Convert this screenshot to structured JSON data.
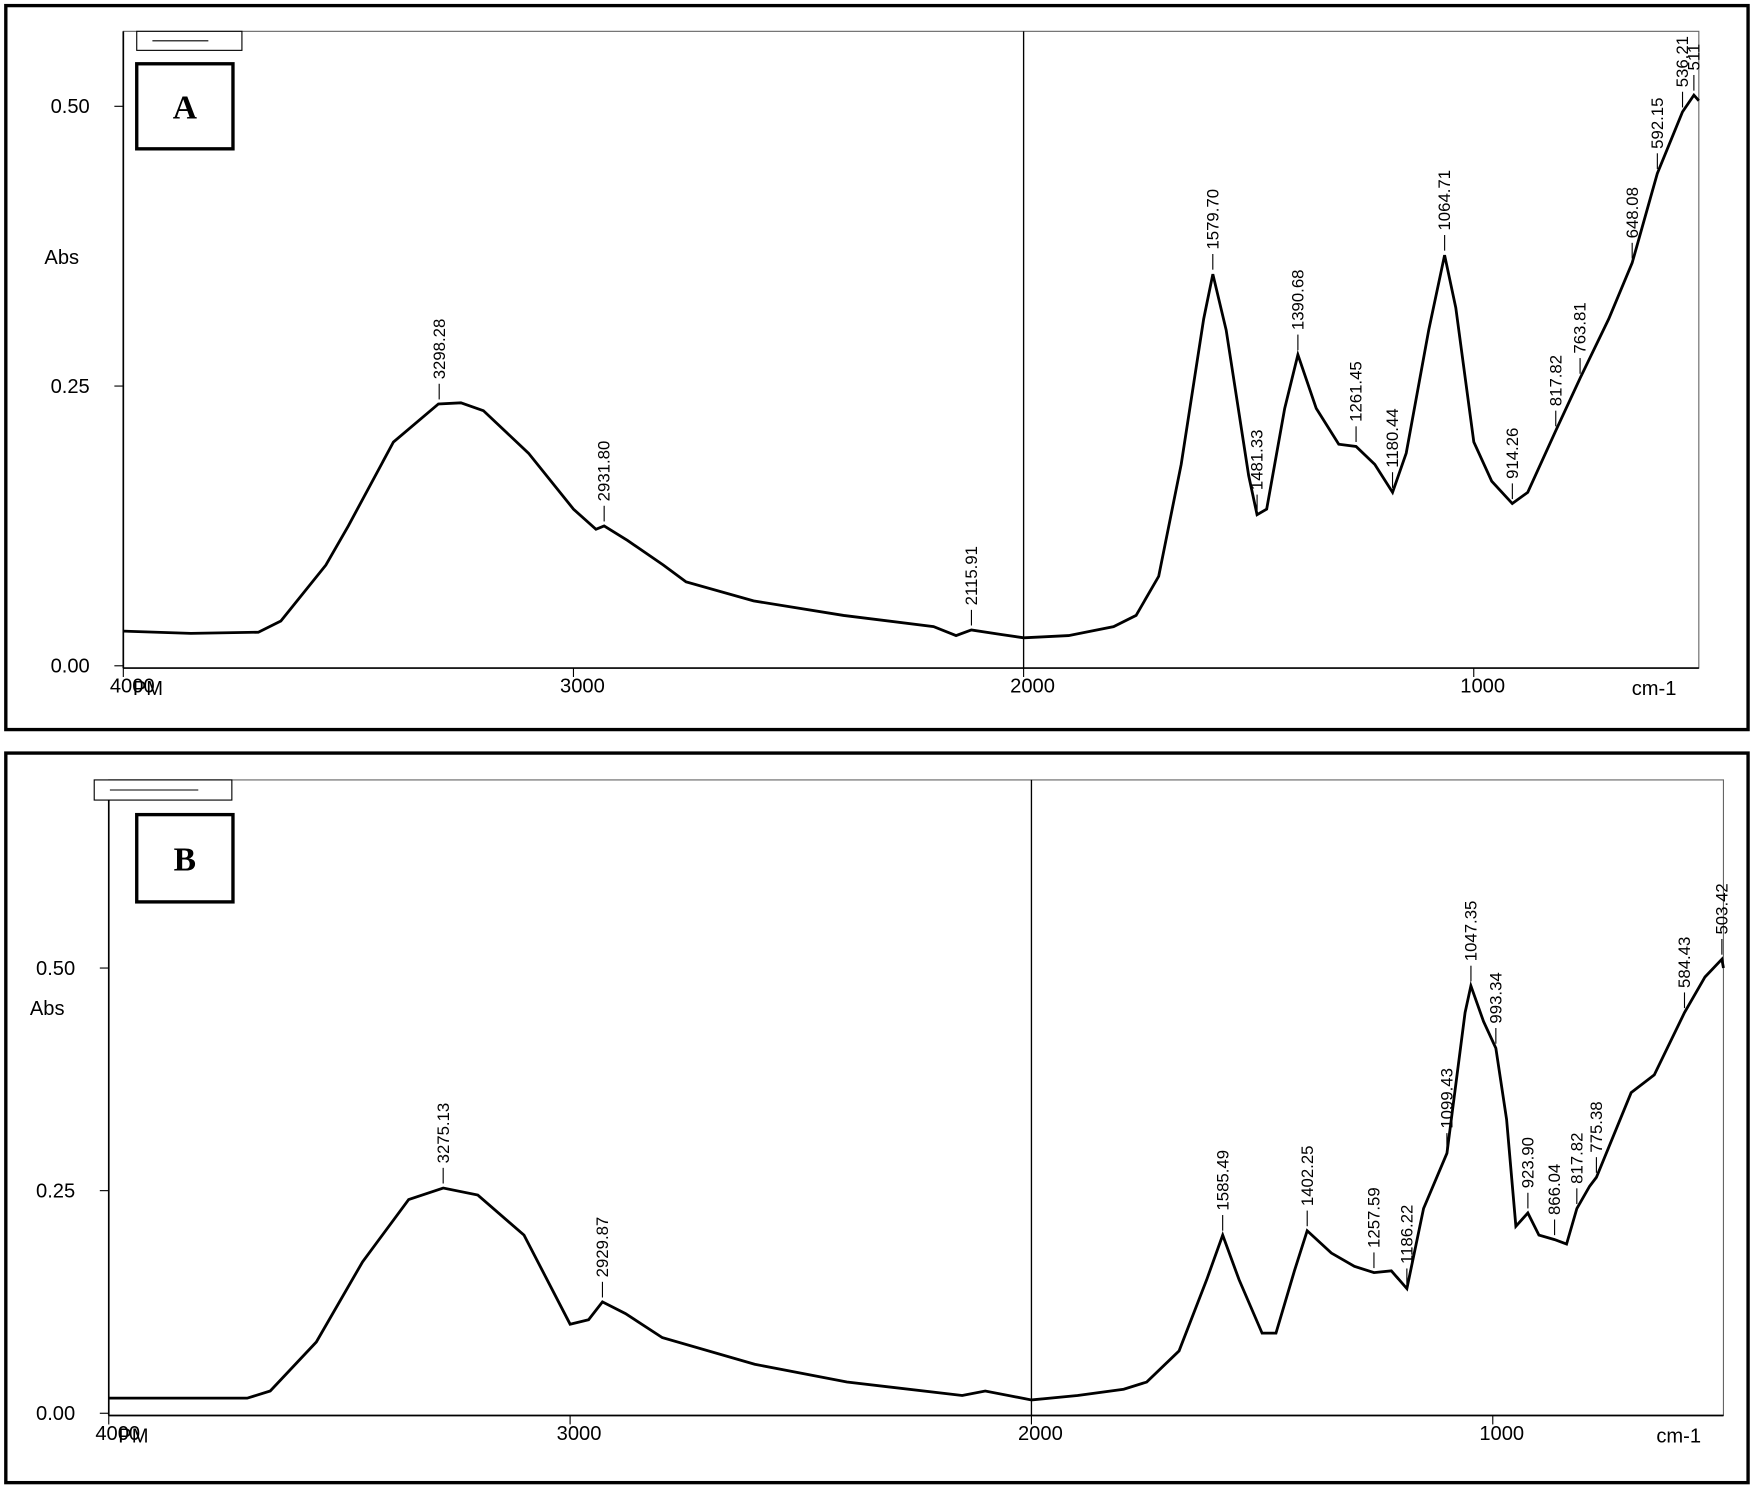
{
  "chart_data": [
    {
      "type": "line",
      "panel_label": "A",
      "y_label": "Abs",
      "x_label": "cm-1",
      "corner_label": "PM",
      "color": "#000000",
      "xlim": [
        4000,
        500
      ],
      "ylim": [
        0,
        0.57
      ],
      "xticks": [
        4000,
        3000,
        2000,
        1000
      ],
      "yticks": [
        {
          "value": 0,
          "label": "0.00"
        },
        {
          "value": 0.25,
          "label": "0.25"
        },
        {
          "value": 0.5,
          "label": "0.50"
        }
      ],
      "vline": 2000,
      "x": [
        4000,
        3850,
        3700,
        3650,
        3550,
        3500,
        3400,
        3300,
        3250,
        3200,
        3100,
        3000,
        2950,
        2931.8,
        2880,
        2800,
        2750,
        2600,
        2400,
        2200,
        2150,
        2115.91,
        2050,
        2000,
        1900,
        1800,
        1750,
        1700,
        1650,
        1600,
        1579.7,
        1550,
        1500,
        1481.33,
        1460,
        1420,
        1390.68,
        1350,
        1300,
        1261.45,
        1220,
        1180.44,
        1150,
        1100,
        1064.71,
        1040,
        1000,
        960,
        914.26,
        880,
        817.82,
        763.81,
        700,
        648.08,
        592.15,
        536.21,
        511,
        500
      ],
      "values": [
        0.031,
        0.029,
        0.03,
        0.04,
        0.09,
        0.125,
        0.2,
        0.234,
        0.235,
        0.228,
        0.19,
        0.14,
        0.122,
        0.125,
        0.112,
        0.09,
        0.075,
        0.058,
        0.045,
        0.035,
        0.027,
        0.032,
        0.028,
        0.025,
        0.027,
        0.035,
        0.045,
        0.08,
        0.18,
        0.31,
        0.35,
        0.3,
        0.17,
        0.135,
        0.14,
        0.23,
        0.278,
        0.23,
        0.198,
        0.196,
        0.18,
        0.155,
        0.19,
        0.3,
        0.367,
        0.32,
        0.2,
        0.165,
        0.145,
        0.155,
        0.21,
        0.257,
        0.31,
        0.36,
        0.44,
        0.495,
        0.51,
        0.505
      ],
      "peaks": [
        {
          "value": 3298.28,
          "label": "3298.28"
        },
        {
          "value": 2931.8,
          "label": "2931.80"
        },
        {
          "value": 2115.91,
          "label": "2115.91"
        },
        {
          "value": 1579.7,
          "label": "1579.70"
        },
        {
          "value": 1481.33,
          "label": "1481.33"
        },
        {
          "value": 1390.68,
          "label": "1390.68"
        },
        {
          "value": 1261.45,
          "label": "1261.45"
        },
        {
          "value": 1180.44,
          "label": "1180.44"
        },
        {
          "value": 1064.71,
          "label": "1064.71"
        },
        {
          "value": 914.26,
          "label": "914.26"
        },
        {
          "value": 817.82,
          "label": "817.82"
        },
        {
          "value": 763.81,
          "label": "763.81"
        },
        {
          "value": 648.08,
          "label": "648.08"
        },
        {
          "value": 592.15,
          "label": "592.15"
        },
        {
          "value": 536.21,
          "label": "536.21"
        },
        511
      ]
    },
    {
      "type": "line",
      "panel_label": "B",
      "y_label": "Abs",
      "x_label": "cm-1",
      "corner_label": "PM",
      "color": "#000000",
      "xlim": [
        4000,
        500
      ],
      "ylim": [
        0,
        0.71
      ],
      "xticks": [
        4000,
        3000,
        2000,
        1000
      ],
      "yticks": [
        {
          "value": 0,
          "label": "0.00"
        },
        {
          "value": 0.25,
          "label": "0.25"
        },
        {
          "value": 0.5,
          "label": "0.50"
        }
      ],
      "vline": 2000,
      "x": [
        4000,
        3700,
        3650,
        3550,
        3450,
        3350,
        3275.13,
        3200,
        3100,
        3000,
        2960,
        2929.87,
        2880,
        2800,
        2600,
        2400,
        2150,
        2100,
        2000,
        1900,
        1800,
        1750,
        1680,
        1620,
        1585.49,
        1550,
        1500,
        1470,
        1430,
        1402.25,
        1350,
        1300,
        1257.59,
        1220,
        1186.22,
        1150,
        1099.43,
        1060,
        1047.35,
        1020,
        993.34,
        970,
        950,
        923.9,
        900,
        866.04,
        840,
        817.82,
        790,
        775.38,
        700,
        650,
        584.43,
        540,
        503.42,
        500
      ],
      "values": [
        0.017,
        0.017,
        0.025,
        0.08,
        0.17,
        0.24,
        0.253,
        0.245,
        0.2,
        0.1,
        0.105,
        0.125,
        0.112,
        0.085,
        0.055,
        0.035,
        0.02,
        0.025,
        0.015,
        0.02,
        0.027,
        0.035,
        0.07,
        0.15,
        0.2,
        0.15,
        0.09,
        0.09,
        0.16,
        0.205,
        0.18,
        0.165,
        0.158,
        0.16,
        0.14,
        0.23,
        0.292,
        0.45,
        0.48,
        0.44,
        0.41,
        0.33,
        0.21,
        0.225,
        0.2,
        0.195,
        0.19,
        0.23,
        0.255,
        0.265,
        0.36,
        0.38,
        0.45,
        0.49,
        0.51,
        0.5
      ],
      "peaks": [
        {
          "value": 3275.13,
          "label": "3275.13"
        },
        {
          "value": 2929.87,
          "label": "2929.87"
        },
        {
          "value": 1585.49,
          "label": "1585.49"
        },
        {
          "value": 1402.25,
          "label": "1402.25"
        },
        {
          "value": 1257.59,
          "label": "1257.59"
        },
        {
          "value": 1186.22,
          "label": "1186.22"
        },
        {
          "value": 1099.43,
          "label": "1099.43"
        },
        {
          "value": 1047.35,
          "label": "1047.35"
        },
        {
          "value": 993.34,
          "label": "993.34"
        },
        {
          "value": 923.9,
          "label": "923.90"
        },
        {
          "value": 866.04,
          "label": "866.04"
        },
        {
          "value": 817.82,
          "label": "817.82"
        },
        {
          "value": 775.38,
          "label": "775.38"
        },
        {
          "value": 584.43,
          "label": "584.43"
        },
        {
          "value": 503.42,
          "label": "503.42"
        }
      ]
    }
  ]
}
